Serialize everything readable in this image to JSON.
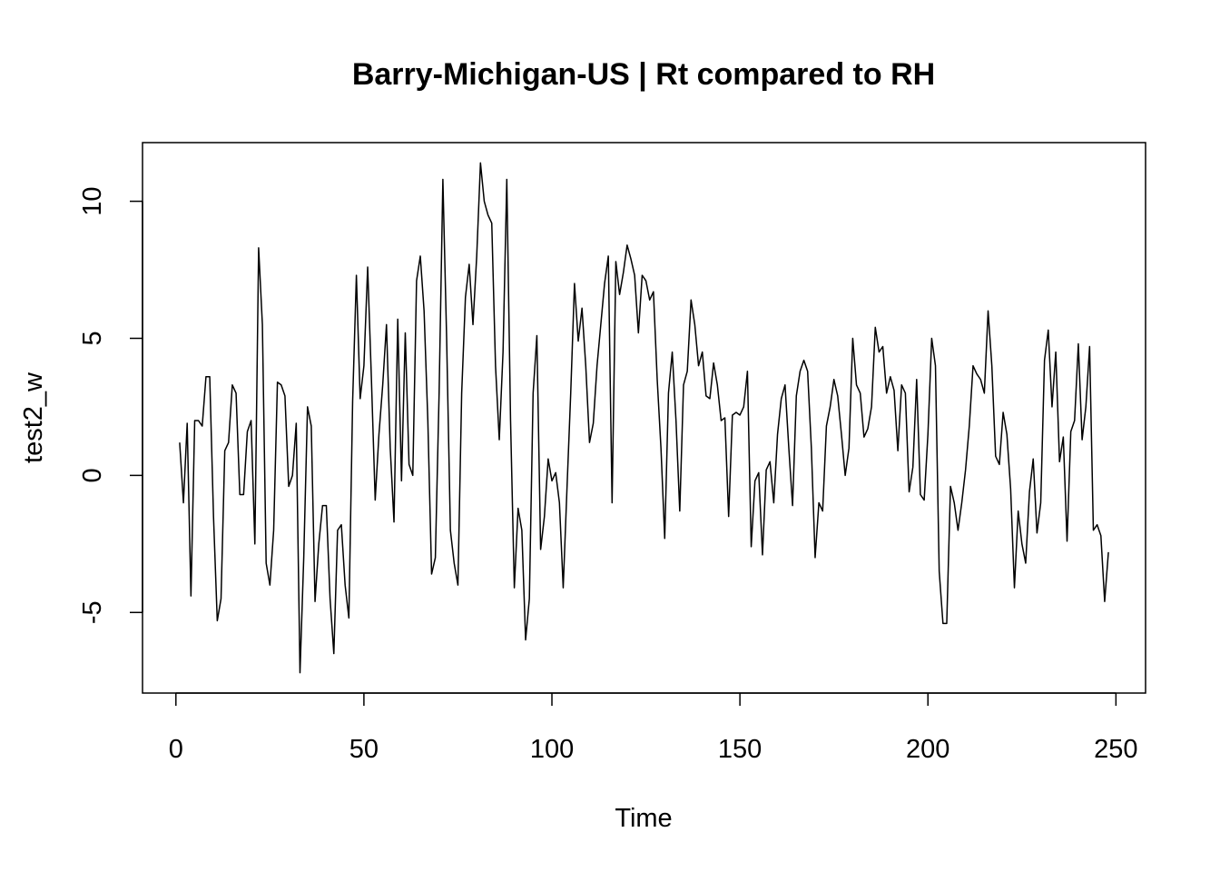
{
  "chart_data": {
    "type": "line",
    "title": "Barry-Michigan-US | Rt compared to RH",
    "x_label": "Time",
    "y_label": "test2_w",
    "xlim": [
      -8.88,
      257.88
    ],
    "ylim": [
      -7.94,
      12.14
    ],
    "xticks": [
      0,
      50,
      100,
      150,
      200,
      250
    ],
    "yticks": [
      -5,
      0,
      5,
      10
    ],
    "grid": false,
    "color": "#000000",
    "x": [
      1,
      2,
      3,
      4,
      5,
      6,
      7,
      8,
      9,
      10,
      11,
      12,
      13,
      14,
      15,
      16,
      17,
      18,
      19,
      20,
      21,
      22,
      23,
      24,
      25,
      26,
      27,
      28,
      29,
      30,
      31,
      32,
      33,
      34,
      35,
      36,
      37,
      38,
      39,
      40,
      41,
      42,
      43,
      44,
      45,
      46,
      47,
      48,
      49,
      50,
      51,
      52,
      53,
      54,
      55,
      56,
      57,
      58,
      59,
      60,
      61,
      62,
      63,
      64,
      65,
      66,
      67,
      68,
      69,
      70,
      71,
      72,
      73,
      74,
      75,
      76,
      77,
      78,
      79,
      80,
      81,
      82,
      83,
      84,
      85,
      86,
      87,
      88,
      89,
      90,
      91,
      92,
      93,
      94,
      95,
      96,
      97,
      98,
      99,
      100,
      101,
      102,
      103,
      104,
      105,
      106,
      107,
      108,
      109,
      110,
      111,
      112,
      113,
      114,
      115,
      116,
      117,
      118,
      119,
      120,
      121,
      122,
      123,
      124,
      125,
      126,
      127,
      128,
      129,
      130,
      131,
      132,
      133,
      134,
      135,
      136,
      137,
      138,
      139,
      140,
      141,
      142,
      143,
      144,
      145,
      146,
      147,
      148,
      149,
      150,
      151,
      152,
      153,
      154,
      155,
      156,
      157,
      158,
      159,
      160,
      161,
      162,
      163,
      164,
      165,
      166,
      167,
      168,
      169,
      170,
      171,
      172,
      173,
      174,
      175,
      176,
      177,
      178,
      179,
      180,
      181,
      182,
      183,
      184,
      185,
      186,
      187,
      188,
      189,
      190,
      191,
      192,
      193,
      194,
      195,
      196,
      197,
      198,
      199,
      200,
      201,
      202,
      203,
      204,
      205,
      206,
      207,
      208,
      209,
      210,
      211,
      212,
      213,
      214,
      215,
      216,
      217,
      218,
      219,
      220,
      221,
      222,
      223,
      224,
      225,
      226,
      227,
      228,
      229,
      230,
      231,
      232,
      233,
      234,
      235,
      236,
      237,
      238,
      239,
      240,
      241,
      242,
      243,
      244,
      245,
      246,
      247,
      248
    ],
    "values": [
      1.2,
      -1.0,
      1.9,
      -4.4,
      2.0,
      2.0,
      1.8,
      3.6,
      3.6,
      -1.5,
      -5.3,
      -4.5,
      0.9,
      1.2,
      3.3,
      3.0,
      -0.7,
      -0.7,
      1.6,
      2.0,
      -2.5,
      8.3,
      5.5,
      -3.2,
      -4.0,
      -2.0,
      3.4,
      3.3,
      2.9,
      -0.4,
      0.0,
      1.9,
      -7.2,
      -3.0,
      2.5,
      1.8,
      -4.6,
      -2.5,
      -1.1,
      -1.1,
      -4.5,
      -6.5,
      -2.0,
      -1.8,
      -4.0,
      -5.2,
      2.7,
      7.3,
      2.8,
      4.0,
      7.6,
      3.5,
      -0.9,
      1.5,
      3.3,
      5.5,
      1.0,
      -1.7,
      5.7,
      -0.2,
      5.2,
      0.4,
      0.0,
      7.1,
      8.0,
      6.0,
      2.0,
      -3.6,
      -3.0,
      3.0,
      10.8,
      5.0,
      -2.0,
      -3.2,
      -4.0,
      3.0,
      6.5,
      7.7,
      5.5,
      8.0,
      11.4,
      10.0,
      9.5,
      9.2,
      4.0,
      1.3,
      4.5,
      10.8,
      2.0,
      -4.1,
      -1.2,
      -2.0,
      -6.0,
      -4.5,
      3.0,
      5.1,
      -2.7,
      -1.5,
      0.6,
      -0.2,
      0.1,
      -1.0,
      -4.1,
      -0.5,
      3.0,
      7.0,
      4.9,
      6.1,
      4.0,
      1.2,
      1.9,
      4.0,
      5.5,
      7.0,
      8.0,
      -1.0,
      7.8,
      6.6,
      7.4,
      8.4,
      7.9,
      7.3,
      5.2,
      7.3,
      7.1,
      6.4,
      6.7,
      3.5,
      1.0,
      -2.3,
      3.0,
      4.5,
      2.0,
      -1.3,
      3.3,
      3.8,
      6.4,
      5.5,
      4.0,
      4.5,
      2.9,
      2.8,
      4.1,
      3.3,
      2.0,
      2.1,
      -1.5,
      2.2,
      2.3,
      2.2,
      2.5,
      3.8,
      -2.6,
      -0.2,
      0.1,
      -2.9,
      0.2,
      0.5,
      -1.0,
      1.5,
      2.8,
      3.3,
      1.0,
      -1.1,
      2.9,
      3.8,
      4.2,
      3.8,
      1.0,
      -3.0,
      -1.0,
      -1.3,
      1.8,
      2.5,
      3.5,
      2.9,
      1.5,
      0.0,
      1.0,
      5.0,
      3.3,
      3.0,
      1.4,
      1.7,
      2.5,
      5.4,
      4.5,
      4.7,
      3.0,
      3.6,
      3.1,
      0.9,
      3.3,
      3.0,
      -0.6,
      0.3,
      3.5,
      -0.7,
      -0.9,
      1.5,
      5.0,
      4.0,
      -3.5,
      -5.4,
      -5.4,
      -0.4,
      -1.0,
      -2.0,
      -1.0,
      0.2,
      1.8,
      4.0,
      3.7,
      3.5,
      3.0,
      6.0,
      4.0,
      0.7,
      0.4,
      2.3,
      1.5,
      -0.5,
      -4.1,
      -1.3,
      -2.5,
      -3.2,
      -0.6,
      0.6,
      -2.1,
      -1.0,
      4.2,
      5.3,
      2.5,
      4.5,
      0.5,
      1.4,
      -2.4,
      1.6,
      2.0,
      4.8,
      1.3,
      2.5,
      4.7,
      -2.0,
      -1.8,
      -2.2,
      -4.6,
      -2.8
    ]
  }
}
